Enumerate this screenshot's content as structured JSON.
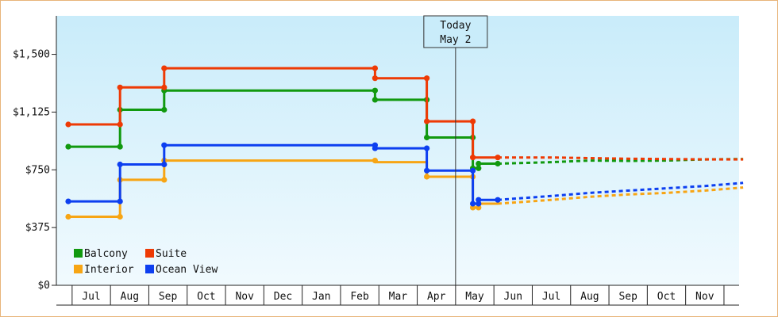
{
  "chart_data": {
    "type": "line",
    "title": "",
    "xlabel": "",
    "ylabel": "",
    "y_ticks": [
      "$0",
      "$375",
      "$750",
      "$1,125",
      "$1,500"
    ],
    "ylim": [
      0,
      1750
    ],
    "x_ticks": [
      "Jul",
      "Aug",
      "Sep",
      "Oct",
      "Nov",
      "Dec",
      "Jan",
      "Feb",
      "Mar",
      "Apr",
      "May",
      "Jun",
      "Jul",
      "Aug",
      "Sep",
      "Oct",
      "Nov"
    ],
    "today": {
      "label_line1": "Today",
      "label_line2": "May 2",
      "x": 10.0
    },
    "grid": false,
    "legend_placement": "bottom-left",
    "series": [
      {
        "name": "Balcony",
        "color": "#11990f",
        "steps": [
          [
            -0.6,
            900
          ],
          [
            0.75,
            900
          ],
          [
            0.75,
            1140
          ],
          [
            1.9,
            1140
          ],
          [
            1.9,
            1265
          ],
          [
            7.4,
            1265
          ],
          [
            7.4,
            1205
          ],
          [
            8.75,
            1205
          ],
          [
            8.75,
            960
          ],
          [
            9.95,
            960
          ],
          [
            9.95,
            760
          ],
          [
            10.1,
            760
          ],
          [
            10.1,
            790
          ],
          [
            10.6,
            790
          ]
        ],
        "markers": [
          [
            -0.6,
            900
          ],
          [
            0.75,
            900
          ],
          [
            0.75,
            1140
          ],
          [
            1.9,
            1140
          ],
          [
            1.9,
            1265
          ],
          [
            7.4,
            1265
          ],
          [
            7.4,
            1205
          ],
          [
            8.75,
            1205
          ],
          [
            8.75,
            960
          ],
          [
            9.95,
            960
          ],
          [
            9.95,
            760
          ],
          [
            10.1,
            760
          ],
          [
            10.1,
            790
          ],
          [
            10.6,
            790
          ]
        ],
        "forecast": [
          [
            10.6,
            790
          ],
          [
            12.0,
            800
          ],
          [
            13.0,
            810
          ],
          [
            14.0,
            808
          ],
          [
            15.0,
            810
          ],
          [
            16.0,
            818
          ],
          [
            17.0,
            820
          ]
        ]
      },
      {
        "name": "Suite",
        "color": "#ee3a05",
        "steps": [
          [
            -0.6,
            1045
          ],
          [
            0.75,
            1045
          ],
          [
            0.75,
            1285
          ],
          [
            1.9,
            1285
          ],
          [
            1.9,
            1410
          ],
          [
            7.4,
            1410
          ],
          [
            7.4,
            1345
          ],
          [
            8.75,
            1345
          ],
          [
            8.75,
            1065
          ],
          [
            9.95,
            1065
          ],
          [
            9.95,
            830
          ],
          [
            10.6,
            830
          ]
        ],
        "markers": [
          [
            -0.6,
            1045
          ],
          [
            0.75,
            1045
          ],
          [
            0.75,
            1285
          ],
          [
            1.9,
            1285
          ],
          [
            1.9,
            1410
          ],
          [
            7.4,
            1410
          ],
          [
            7.4,
            1345
          ],
          [
            8.75,
            1345
          ],
          [
            8.75,
            1065
          ],
          [
            9.95,
            1065
          ],
          [
            9.95,
            830
          ],
          [
            10.6,
            830
          ]
        ],
        "forecast": [
          [
            10.6,
            830
          ],
          [
            12.0,
            830
          ],
          [
            13.0,
            826
          ],
          [
            14.0,
            822
          ],
          [
            15.0,
            820
          ],
          [
            16.0,
            818
          ],
          [
            17.0,
            818
          ]
        ]
      },
      {
        "name": "Interior",
        "color": "#f7a514",
        "steps": [
          [
            -0.6,
            445
          ],
          [
            0.75,
            445
          ],
          [
            0.75,
            685
          ],
          [
            1.9,
            685
          ],
          [
            1.9,
            810
          ],
          [
            7.4,
            810
          ],
          [
            7.4,
            800
          ],
          [
            8.75,
            800
          ],
          [
            8.75,
            705
          ],
          [
            9.95,
            705
          ],
          [
            9.95,
            505
          ],
          [
            10.1,
            505
          ],
          [
            10.1,
            530
          ],
          [
            10.6,
            530
          ]
        ],
        "markers": [
          [
            -0.6,
            445
          ],
          [
            0.75,
            445
          ],
          [
            0.75,
            685
          ],
          [
            1.9,
            685
          ],
          [
            1.9,
            810
          ],
          [
            7.4,
            810
          ],
          [
            8.75,
            705
          ],
          [
            9.95,
            705
          ],
          [
            9.95,
            505
          ],
          [
            10.1,
            505
          ],
          [
            10.1,
            530
          ]
        ],
        "forecast": [
          [
            10.6,
            530
          ],
          [
            12.0,
            555
          ],
          [
            13.0,
            575
          ],
          [
            14.0,
            590
          ],
          [
            15.0,
            600
          ],
          [
            16.0,
            615
          ],
          [
            17.0,
            635
          ]
        ]
      },
      {
        "name": "Ocean View",
        "color": "#0d3ff0",
        "steps": [
          [
            -0.6,
            545
          ],
          [
            0.75,
            545
          ],
          [
            0.75,
            785
          ],
          [
            1.9,
            785
          ],
          [
            1.9,
            910
          ],
          [
            7.4,
            910
          ],
          [
            7.4,
            890
          ],
          [
            8.75,
            890
          ],
          [
            8.75,
            745
          ],
          [
            9.95,
            745
          ],
          [
            9.95,
            530
          ],
          [
            10.1,
            530
          ],
          [
            10.1,
            555
          ],
          [
            10.6,
            555
          ]
        ],
        "markers": [
          [
            -0.6,
            545
          ],
          [
            0.75,
            545
          ],
          [
            0.75,
            785
          ],
          [
            1.9,
            785
          ],
          [
            1.9,
            910
          ],
          [
            7.4,
            910
          ],
          [
            7.4,
            890
          ],
          [
            8.75,
            890
          ],
          [
            8.75,
            745
          ],
          [
            9.95,
            745
          ],
          [
            9.95,
            530
          ],
          [
            10.1,
            530
          ],
          [
            10.1,
            555
          ],
          [
            10.6,
            555
          ]
        ],
        "forecast": [
          [
            10.6,
            555
          ],
          [
            12.0,
            580
          ],
          [
            13.0,
            600
          ],
          [
            14.0,
            615
          ],
          [
            15.0,
            630
          ],
          [
            16.0,
            645
          ],
          [
            17.0,
            665
          ]
        ]
      }
    ],
    "legend": [
      {
        "name": "Balcony",
        "color": "#11990f"
      },
      {
        "name": "Suite",
        "color": "#ee3a05"
      },
      {
        "name": "Interior",
        "color": "#f7a514"
      },
      {
        "name": "Ocean View",
        "color": "#0d3ff0"
      }
    ]
  }
}
